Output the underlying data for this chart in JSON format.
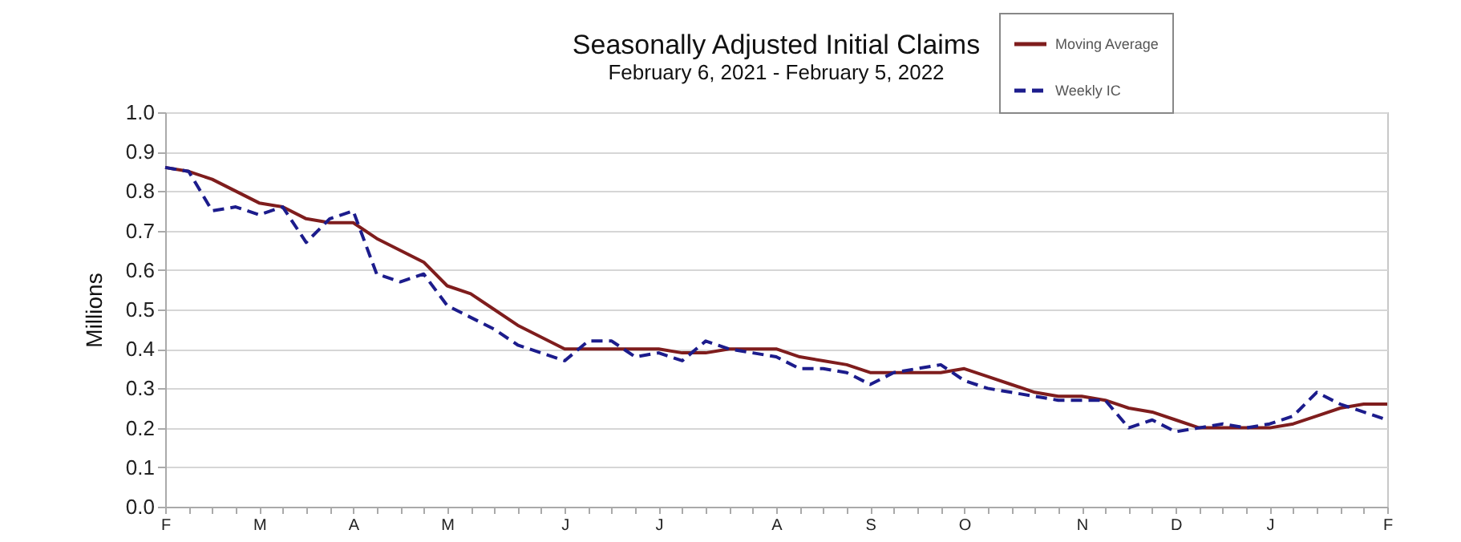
{
  "chart_data": {
    "type": "line",
    "title": "Seasonally Adjusted Initial Claims",
    "subtitle": "February 6, 2021 - February 5, 2022",
    "ylabel": "Millions",
    "categories": [
      "F",
      null,
      null,
      null,
      "M",
      null,
      null,
      null,
      "A",
      null,
      null,
      null,
      "M",
      null,
      null,
      null,
      null,
      "J",
      null,
      null,
      null,
      "J",
      null,
      null,
      null,
      null,
      "A",
      null,
      null,
      null,
      "S",
      null,
      null,
      null,
      "O",
      null,
      null,
      null,
      null,
      "N",
      null,
      null,
      null,
      "D",
      null,
      null,
      null,
      "J",
      null,
      null,
      null,
      null,
      "F"
    ],
    "series": [
      {
        "name": "Moving Average",
        "color": "#7f1d1d",
        "line_style": "solid",
        "values": [
          0.86,
          0.85,
          0.83,
          0.8,
          0.77,
          0.76,
          0.73,
          0.72,
          0.72,
          0.68,
          0.65,
          0.62,
          0.56,
          0.54,
          0.5,
          0.46,
          0.43,
          0.4,
          0.4,
          0.4,
          0.4,
          0.4,
          0.39,
          0.39,
          0.4,
          0.4,
          0.4,
          0.38,
          0.37,
          0.36,
          0.34,
          0.34,
          0.34,
          0.34,
          0.35,
          0.33,
          0.31,
          0.29,
          0.28,
          0.28,
          0.27,
          0.25,
          0.24,
          0.22,
          0.2,
          0.2,
          0.2,
          0.2,
          0.21,
          0.23,
          0.25,
          0.26,
          0.26
        ]
      },
      {
        "name": "Weekly IC",
        "color": "#1c1c8c",
        "line_style": "dashed",
        "values": [
          0.86,
          0.85,
          0.75,
          0.76,
          0.74,
          0.76,
          0.67,
          0.73,
          0.75,
          0.59,
          0.57,
          0.59,
          0.51,
          0.48,
          0.45,
          0.41,
          0.39,
          0.37,
          0.42,
          0.42,
          0.38,
          0.39,
          0.37,
          0.42,
          0.4,
          0.39,
          0.38,
          0.35,
          0.35,
          0.34,
          0.31,
          0.34,
          0.35,
          0.36,
          0.32,
          0.3,
          0.29,
          0.28,
          0.27,
          0.27,
          0.27,
          0.2,
          0.22,
          0.19,
          0.2,
          0.21,
          0.2,
          0.21,
          0.23,
          0.29,
          0.26,
          0.24,
          0.22
        ]
      }
    ],
    "ylim": [
      0,
      1
    ],
    "yticks": [
      {
        "value": 0,
        "label": "0.0"
      },
      0.1,
      0.2,
      0.3,
      0.4,
      0.5,
      0.6,
      0.7,
      0.8,
      0.9,
      {
        "value": 1,
        "label": "1.0"
      }
    ],
    "grid": "y",
    "legend": "top right",
    "marker": "none"
  }
}
